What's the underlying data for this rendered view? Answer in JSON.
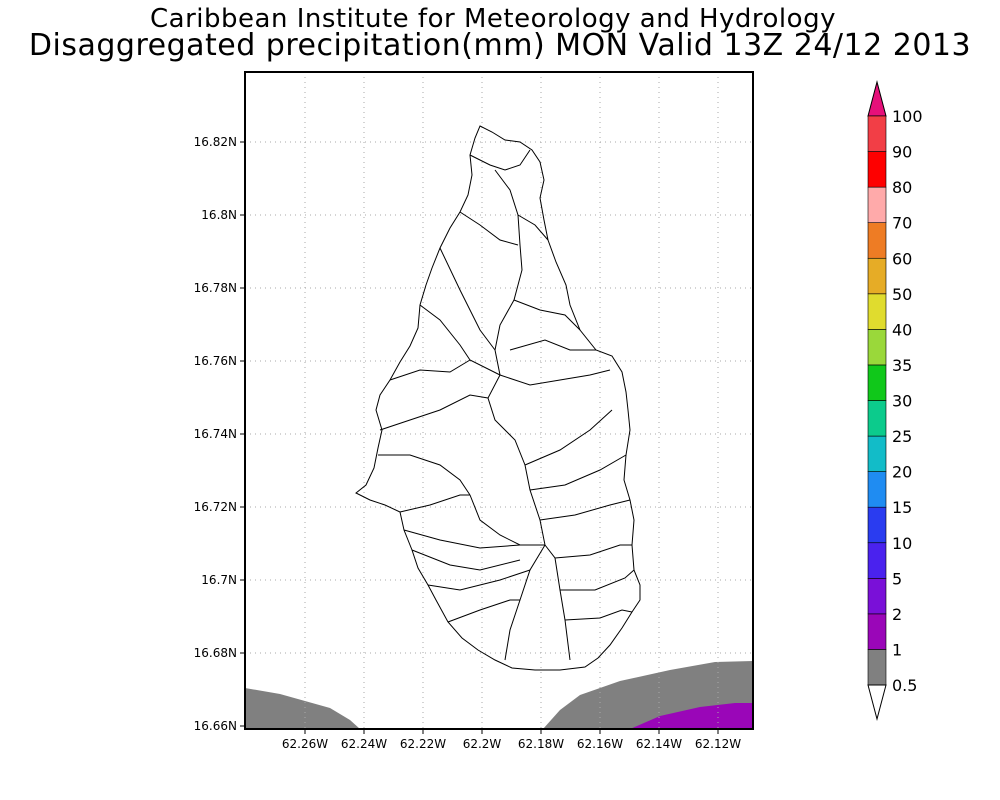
{
  "header": {
    "institute": "Caribbean Institute for Meteorology and Hydrology",
    "subtitle": "Disaggregated precipitation(mm) MON Valid 13Z 24/12 2013"
  },
  "map": {
    "region": "Montserrat",
    "lat_ticks": [
      "16.82N",
      "16.8N",
      "16.78N",
      "16.76N",
      "16.74N",
      "16.72N",
      "16.7N",
      "16.68N",
      "16.66N"
    ],
    "lon_ticks": [
      "62.26W",
      "62.24W",
      "62.22W",
      "62.2W",
      "62.18W",
      "62.16W",
      "62.14W",
      "62.12W"
    ],
    "grid": "dotted"
  },
  "colorbar": {
    "labels": [
      "0.5",
      "1",
      "2",
      "5",
      "10",
      "15",
      "20",
      "25",
      "30",
      "35",
      "40",
      "50",
      "60",
      "70",
      "80",
      "90",
      "100"
    ],
    "colors": [
      "#808080",
      "#9a06b8",
      "#7a10d8",
      "#4a22ee",
      "#2a3cf0",
      "#1f8cf2",
      "#12bcc8",
      "#0ccb8c",
      "#10c81a",
      "#9ad83a",
      "#e0dc2e",
      "#e6ac26",
      "#ee7c24",
      "#ffaaaa",
      "#fe0000",
      "#f23e46"
    ],
    "top_arrow_color": "#e6107a",
    "bottom_arrow_color": "#ffffff"
  },
  "precip_areas": [
    {
      "name": "grey",
      "color": "#808080",
      "level": "0.5-1"
    },
    {
      "name": "purple",
      "color": "#9a06b8",
      "level": "1-2"
    }
  ]
}
